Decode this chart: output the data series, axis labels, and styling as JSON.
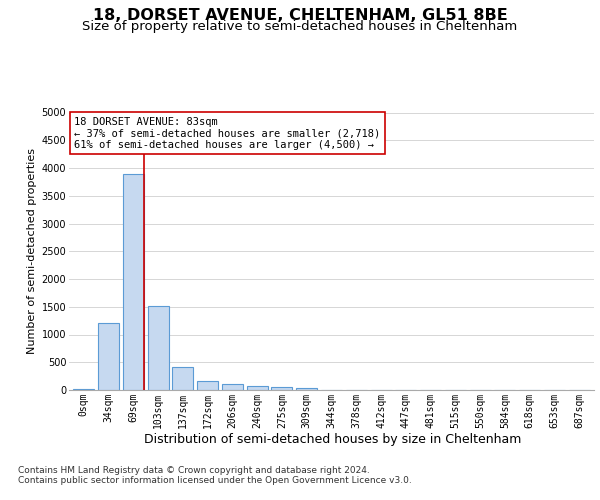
{
  "title_line1": "18, DORSET AVENUE, CHELTENHAM, GL51 8BE",
  "title_line2": "Size of property relative to semi-detached houses in Cheltenham",
  "xlabel": "Distribution of semi-detached houses by size in Cheltenham",
  "ylabel": "Number of semi-detached properties",
  "footer_line1": "Contains HM Land Registry data © Crown copyright and database right 2024.",
  "footer_line2": "Contains public sector information licensed under the Open Government Licence v3.0.",
  "categories": [
    "0sqm",
    "34sqm",
    "69sqm",
    "103sqm",
    "137sqm",
    "172sqm",
    "206sqm",
    "240sqm",
    "275sqm",
    "309sqm",
    "344sqm",
    "378sqm",
    "412sqm",
    "447sqm",
    "481sqm",
    "515sqm",
    "550sqm",
    "584sqm",
    "618sqm",
    "653sqm",
    "687sqm"
  ],
  "values": [
    20,
    1200,
    3900,
    1520,
    420,
    160,
    110,
    75,
    55,
    40,
    0,
    0,
    0,
    0,
    0,
    0,
    0,
    0,
    0,
    0,
    0
  ],
  "bar_color": "#c6d9f0",
  "bar_edge_color": "#5b9bd5",
  "bar_edge_width": 0.8,
  "grid_color": "#d0d0d0",
  "background_color": "#ffffff",
  "property_line_color": "#cc0000",
  "annotation_text": "18 DORSET AVENUE: 83sqm\n← 37% of semi-detached houses are smaller (2,718)\n61% of semi-detached houses are larger (4,500) →",
  "annotation_box_color": "#cc0000",
  "ylim": [
    0,
    5000
  ],
  "yticks": [
    0,
    500,
    1000,
    1500,
    2000,
    2500,
    3000,
    3500,
    4000,
    4500,
    5000
  ],
  "title_fontsize": 11.5,
  "subtitle_fontsize": 9.5,
  "xlabel_fontsize": 9,
  "ylabel_fontsize": 8,
  "tick_fontsize": 7,
  "annotation_fontsize": 7.5,
  "footer_fontsize": 6.5
}
